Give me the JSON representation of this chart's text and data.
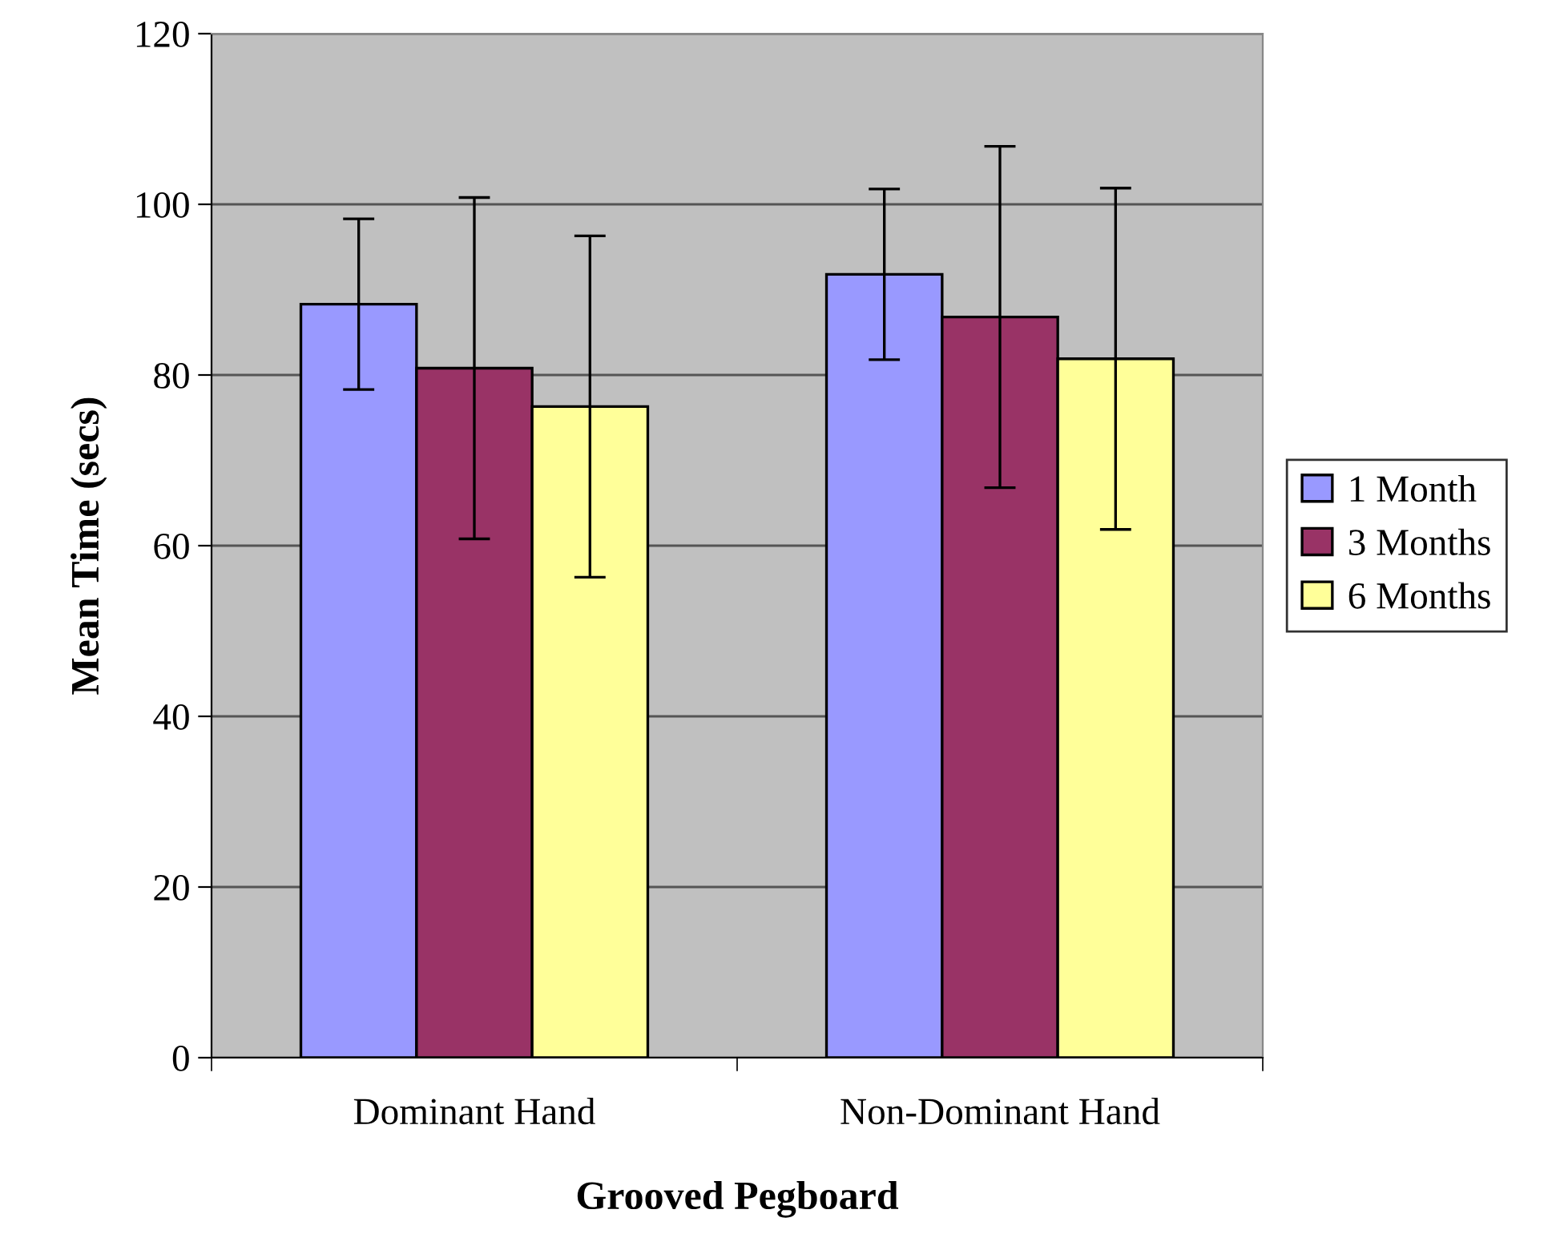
{
  "chart_data": {
    "type": "bar",
    "xlabel": "Grooved Pegboard",
    "ylabel": "Mean Time (secs)",
    "categories": [
      "Dominant Hand",
      "Non-Dominant Hand"
    ],
    "series": [
      {
        "name": "1 Month",
        "color": "#9999ff",
        "values": [
          88.3,
          91.8
        ],
        "errors": [
          10,
          10
        ]
      },
      {
        "name": "3 Months",
        "color": "#993366",
        "values": [
          80.8,
          86.8
        ],
        "errors": [
          20,
          20
        ]
      },
      {
        "name": "6 Months",
        "color": "#ffff99",
        "values": [
          76.3,
          81.9
        ],
        "errors": [
          20,
          20
        ]
      }
    ],
    "ylim": [
      0,
      120
    ],
    "yticks": [
      0,
      20,
      40,
      60,
      80,
      100,
      120
    ],
    "grid": "y",
    "legend": "right"
  }
}
